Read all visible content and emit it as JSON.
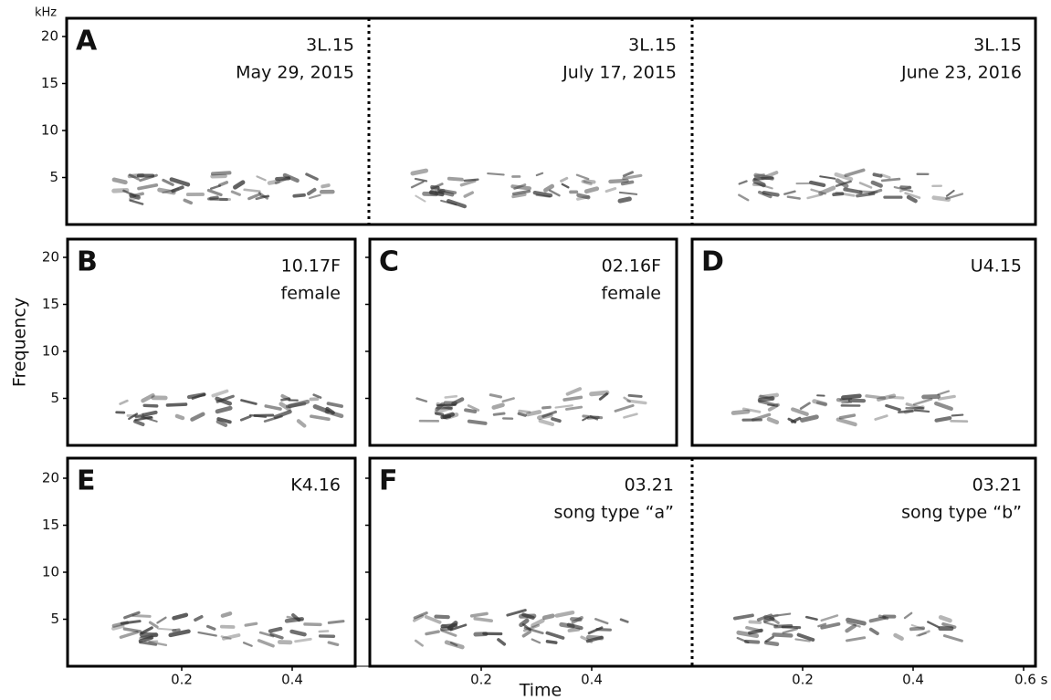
{
  "figure": {
    "y_unit": "kHz",
    "y_label": "Frequency",
    "x_label": "Time",
    "yticks": [
      5,
      10,
      15,
      20
    ],
    "xticks": [
      [
        0.2,
        0.4
      ],
      [
        0.2,
        0.4
      ],
      [
        0.2,
        0.4,
        {
          "value": 0.6,
          "label": "0.6 s"
        }
      ]
    ],
    "panels": [
      {
        "letter": "A",
        "labels": [
          [
            "3L.15",
            "May 29, 2015"
          ],
          [
            "3L.15",
            "July 17, 2015"
          ],
          [
            "3L.15",
            "June 23, 2016"
          ]
        ]
      },
      {
        "letter": "B",
        "labels": [
          [
            "10.17F",
            "female"
          ]
        ]
      },
      {
        "letter": "C",
        "labels": [
          [
            "02.16F",
            "female"
          ]
        ]
      },
      {
        "letter": "D",
        "labels": [
          [
            "U4.15"
          ]
        ]
      },
      {
        "letter": "E",
        "labels": [
          [
            "K4.16"
          ]
        ]
      },
      {
        "letter": "F",
        "labels": [
          [
            "03.21",
            "song type “a”"
          ],
          [
            "03.21",
            "song type “b”"
          ]
        ]
      }
    ]
  }
}
